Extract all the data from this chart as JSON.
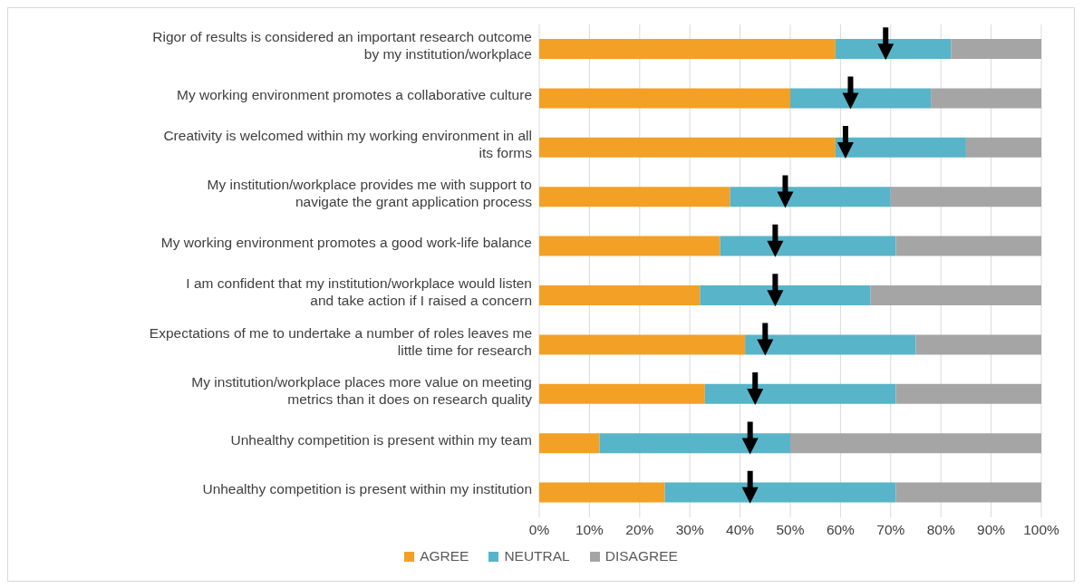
{
  "chart_data": {
    "type": "bar",
    "orientation": "horizontal",
    "stacked": true,
    "categories": [
      "Rigor of results is considered an important research outcome by my institution/workplace",
      "My working environment promotes a collaborative culture",
      "Creativity is welcomed within my working environment in all its forms",
      "My institution/workplace provides me with support to navigate the grant application process",
      "My working environment promotes a good work-life balance",
      "I am confident that my institution/workplace would listen and take action if I raised a concern",
      "Expectations of me to undertake a number of roles leaves me little time for research",
      "My institution/workplace places more value on meeting metrics than it does on research quality",
      "Unhealthy competition is present within my team",
      "Unhealthy competition is present within my institution"
    ],
    "series": [
      {
        "name": "AGREE",
        "color": "#f2a126",
        "values": [
          59,
          50,
          59,
          38,
          36,
          32,
          41,
          33,
          12,
          25
        ]
      },
      {
        "name": "NEUTRAL",
        "color": "#58b4c8",
        "values": [
          23,
          28,
          26,
          32,
          35,
          34,
          34,
          38,
          38,
          46
        ]
      },
      {
        "name": "DISAGREE",
        "color": "#a5a5a5",
        "values": [
          18,
          22,
          15,
          30,
          29,
          34,
          25,
          29,
          50,
          29
        ]
      },
      {
        "type": "scatter",
        "color": "#000000",
        "marker": "triangle",
        "values": [
          69,
          62,
          61,
          49,
          47,
          47,
          45,
          43,
          42,
          42
        ]
      }
    ],
    "xlim": [
      0,
      100
    ],
    "xticks": [
      {
        "value": 0,
        "label": "0%"
      },
      {
        "value": 10,
        "label": "10%"
      },
      {
        "value": 20,
        "label": "20%"
      },
      {
        "value": 30,
        "label": "30%"
      },
      {
        "value": 40,
        "label": "40%"
      },
      {
        "value": 50,
        "label": "50%"
      },
      {
        "value": 60,
        "label": "60%"
      },
      {
        "value": 70,
        "label": "70%"
      },
      {
        "value": 80,
        "label": "80%"
      },
      {
        "value": 90,
        "label": "90%"
      },
      {
        "value": 100,
        "label": "100%"
      }
    ],
    "grid": "x",
    "legend": "bottom"
  }
}
